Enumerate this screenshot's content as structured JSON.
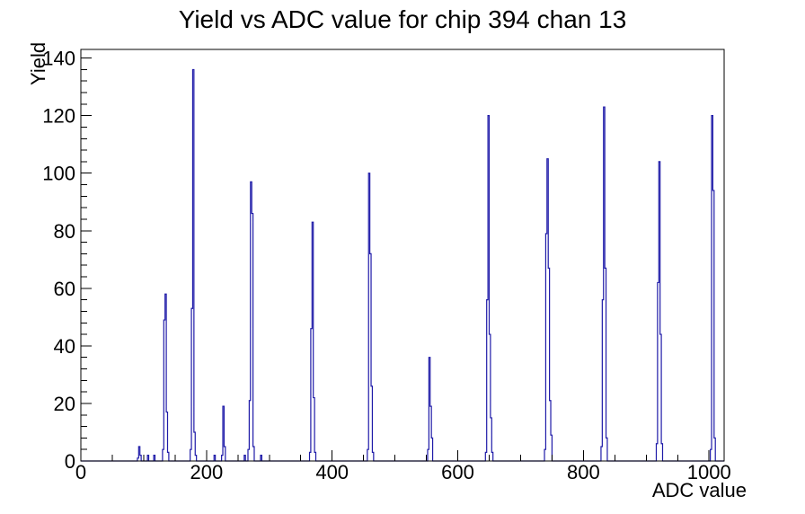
{
  "chart_data": {
    "type": "bar",
    "title": "Yield vs ADC value for chip 394 chan 13",
    "xlabel": "ADC value",
    "ylabel": "Yield",
    "xlim": [
      0,
      1024
    ],
    "ylim": [
      0,
      143
    ],
    "x_major_ticks": [
      0,
      200,
      400,
      600,
      800,
      1000
    ],
    "x_minor_step": 50,
    "y_major_ticks": [
      0,
      20,
      40,
      60,
      80,
      100,
      120,
      140
    ],
    "y_minor_step": 4,
    "bin_width": 2,
    "grid": false,
    "legend": false,
    "line_color": "#1e1aa8",
    "axis_color": "#000000",
    "background_color": "#ffffff",
    "bins": [
      [
        90,
        1
      ],
      [
        92,
        5
      ],
      [
        94,
        2
      ],
      [
        106,
        2
      ],
      [
        116,
        2
      ],
      [
        130,
        4
      ],
      [
        132,
        49
      ],
      [
        134,
        58
      ],
      [
        136,
        17
      ],
      [
        138,
        3
      ],
      [
        174,
        4
      ],
      [
        176,
        53
      ],
      [
        178,
        136
      ],
      [
        180,
        10
      ],
      [
        182,
        2
      ],
      [
        212,
        2
      ],
      [
        224,
        2
      ],
      [
        226,
        19
      ],
      [
        228,
        5
      ],
      [
        260,
        2
      ],
      [
        266,
        4
      ],
      [
        268,
        21
      ],
      [
        270,
        97
      ],
      [
        272,
        86
      ],
      [
        274,
        5
      ],
      [
        286,
        2
      ],
      [
        364,
        3
      ],
      [
        366,
        46
      ],
      [
        368,
        83
      ],
      [
        370,
        22
      ],
      [
        372,
        3
      ],
      [
        456,
        4
      ],
      [
        458,
        100
      ],
      [
        460,
        72
      ],
      [
        462,
        26
      ],
      [
        464,
        3
      ],
      [
        552,
        4
      ],
      [
        554,
        36
      ],
      [
        556,
        19
      ],
      [
        558,
        8
      ],
      [
        644,
        3
      ],
      [
        646,
        56
      ],
      [
        648,
        120
      ],
      [
        650,
        44
      ],
      [
        652,
        15
      ],
      [
        654,
        3
      ],
      [
        738,
        4
      ],
      [
        740,
        79
      ],
      [
        742,
        105
      ],
      [
        744,
        67
      ],
      [
        746,
        21
      ],
      [
        748,
        9
      ],
      [
        828,
        5
      ],
      [
        830,
        56
      ],
      [
        832,
        123
      ],
      [
        834,
        67
      ],
      [
        836,
        8
      ],
      [
        916,
        6
      ],
      [
        918,
        62
      ],
      [
        920,
        104
      ],
      [
        922,
        44
      ],
      [
        924,
        6
      ],
      [
        1002,
        4
      ],
      [
        1004,
        120
      ],
      [
        1006,
        94
      ],
      [
        1008,
        8
      ]
    ]
  }
}
